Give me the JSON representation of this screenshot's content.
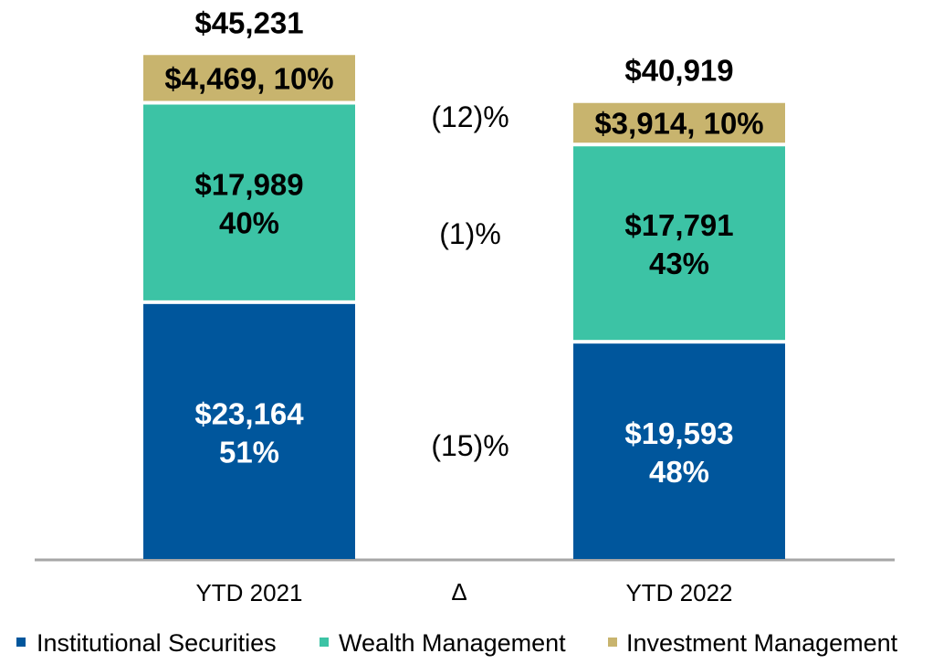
{
  "chart_data": {
    "type": "bar",
    "stacked": true,
    "categories": [
      "YTD 2021",
      "YTD 2022"
    ],
    "delta_label": "Δ",
    "series": [
      {
        "name": "Institutional Securities",
        "color": "#00569C",
        "label_color": "#FFFFFF",
        "values": [
          23164,
          19593
        ],
        "labels": [
          "$23,164",
          "$19,593"
        ],
        "percent_labels": [
          "51%",
          "48%"
        ]
      },
      {
        "name": "Wealth Management",
        "color": "#3CC3A5",
        "label_color": "#000000",
        "values": [
          17989,
          17791
        ],
        "labels": [
          "$17,989",
          "$17,791"
        ],
        "percent_labels": [
          "40%",
          "43%"
        ]
      },
      {
        "name": "Investment Management",
        "color": "#C8B46E",
        "label_color": "#000000",
        "values": [
          4469,
          3914
        ],
        "labels": [
          "$4,469, 10%",
          "$3,914, 10%"
        ]
      }
    ],
    "totals": [
      "$45,231",
      "$40,919"
    ],
    "changes": [
      "(15)%",
      "(1)%",
      "(12)%"
    ],
    "legend_position": "bottom",
    "ylim": [
      0,
      50000
    ],
    "grid": false
  }
}
